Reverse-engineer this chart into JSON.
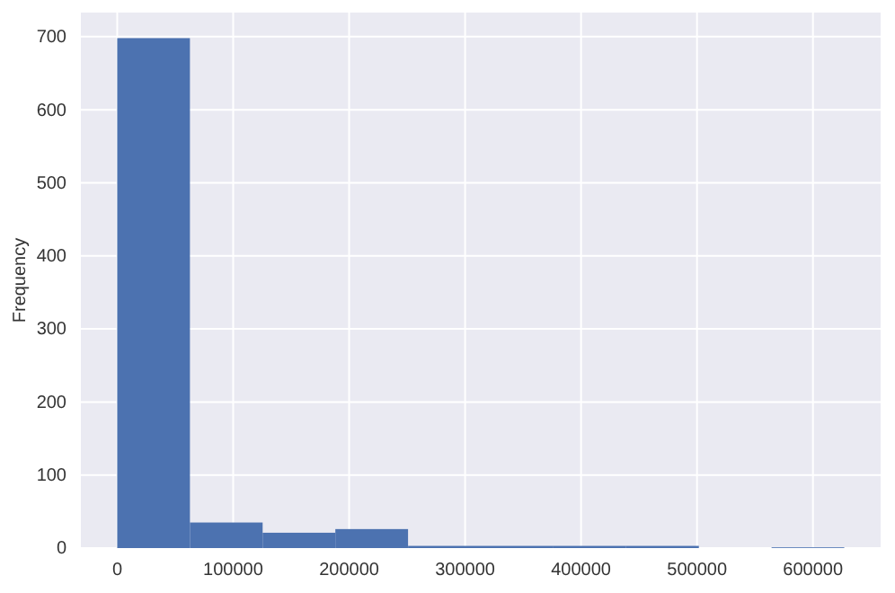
{
  "chart_data": {
    "type": "histogram",
    "ylabel": "Frequency",
    "bins": [
      0,
      62700,
      125400,
      188100,
      250800,
      313500,
      376200,
      438900,
      501600,
      564300,
      627000
    ],
    "values": [
      698,
      35,
      21,
      26,
      3,
      3,
      3,
      3,
      0,
      1
    ],
    "color": "#4c72b0",
    "xlim": [
      -31350,
      658350
    ],
    "xticks": [
      0,
      100000,
      200000,
      300000,
      400000,
      500000,
      600000
    ],
    "ylim": [
      0,
      733
    ],
    "yticks": [
      0,
      100,
      200,
      300,
      400,
      500,
      600,
      700
    ],
    "grid": true
  }
}
